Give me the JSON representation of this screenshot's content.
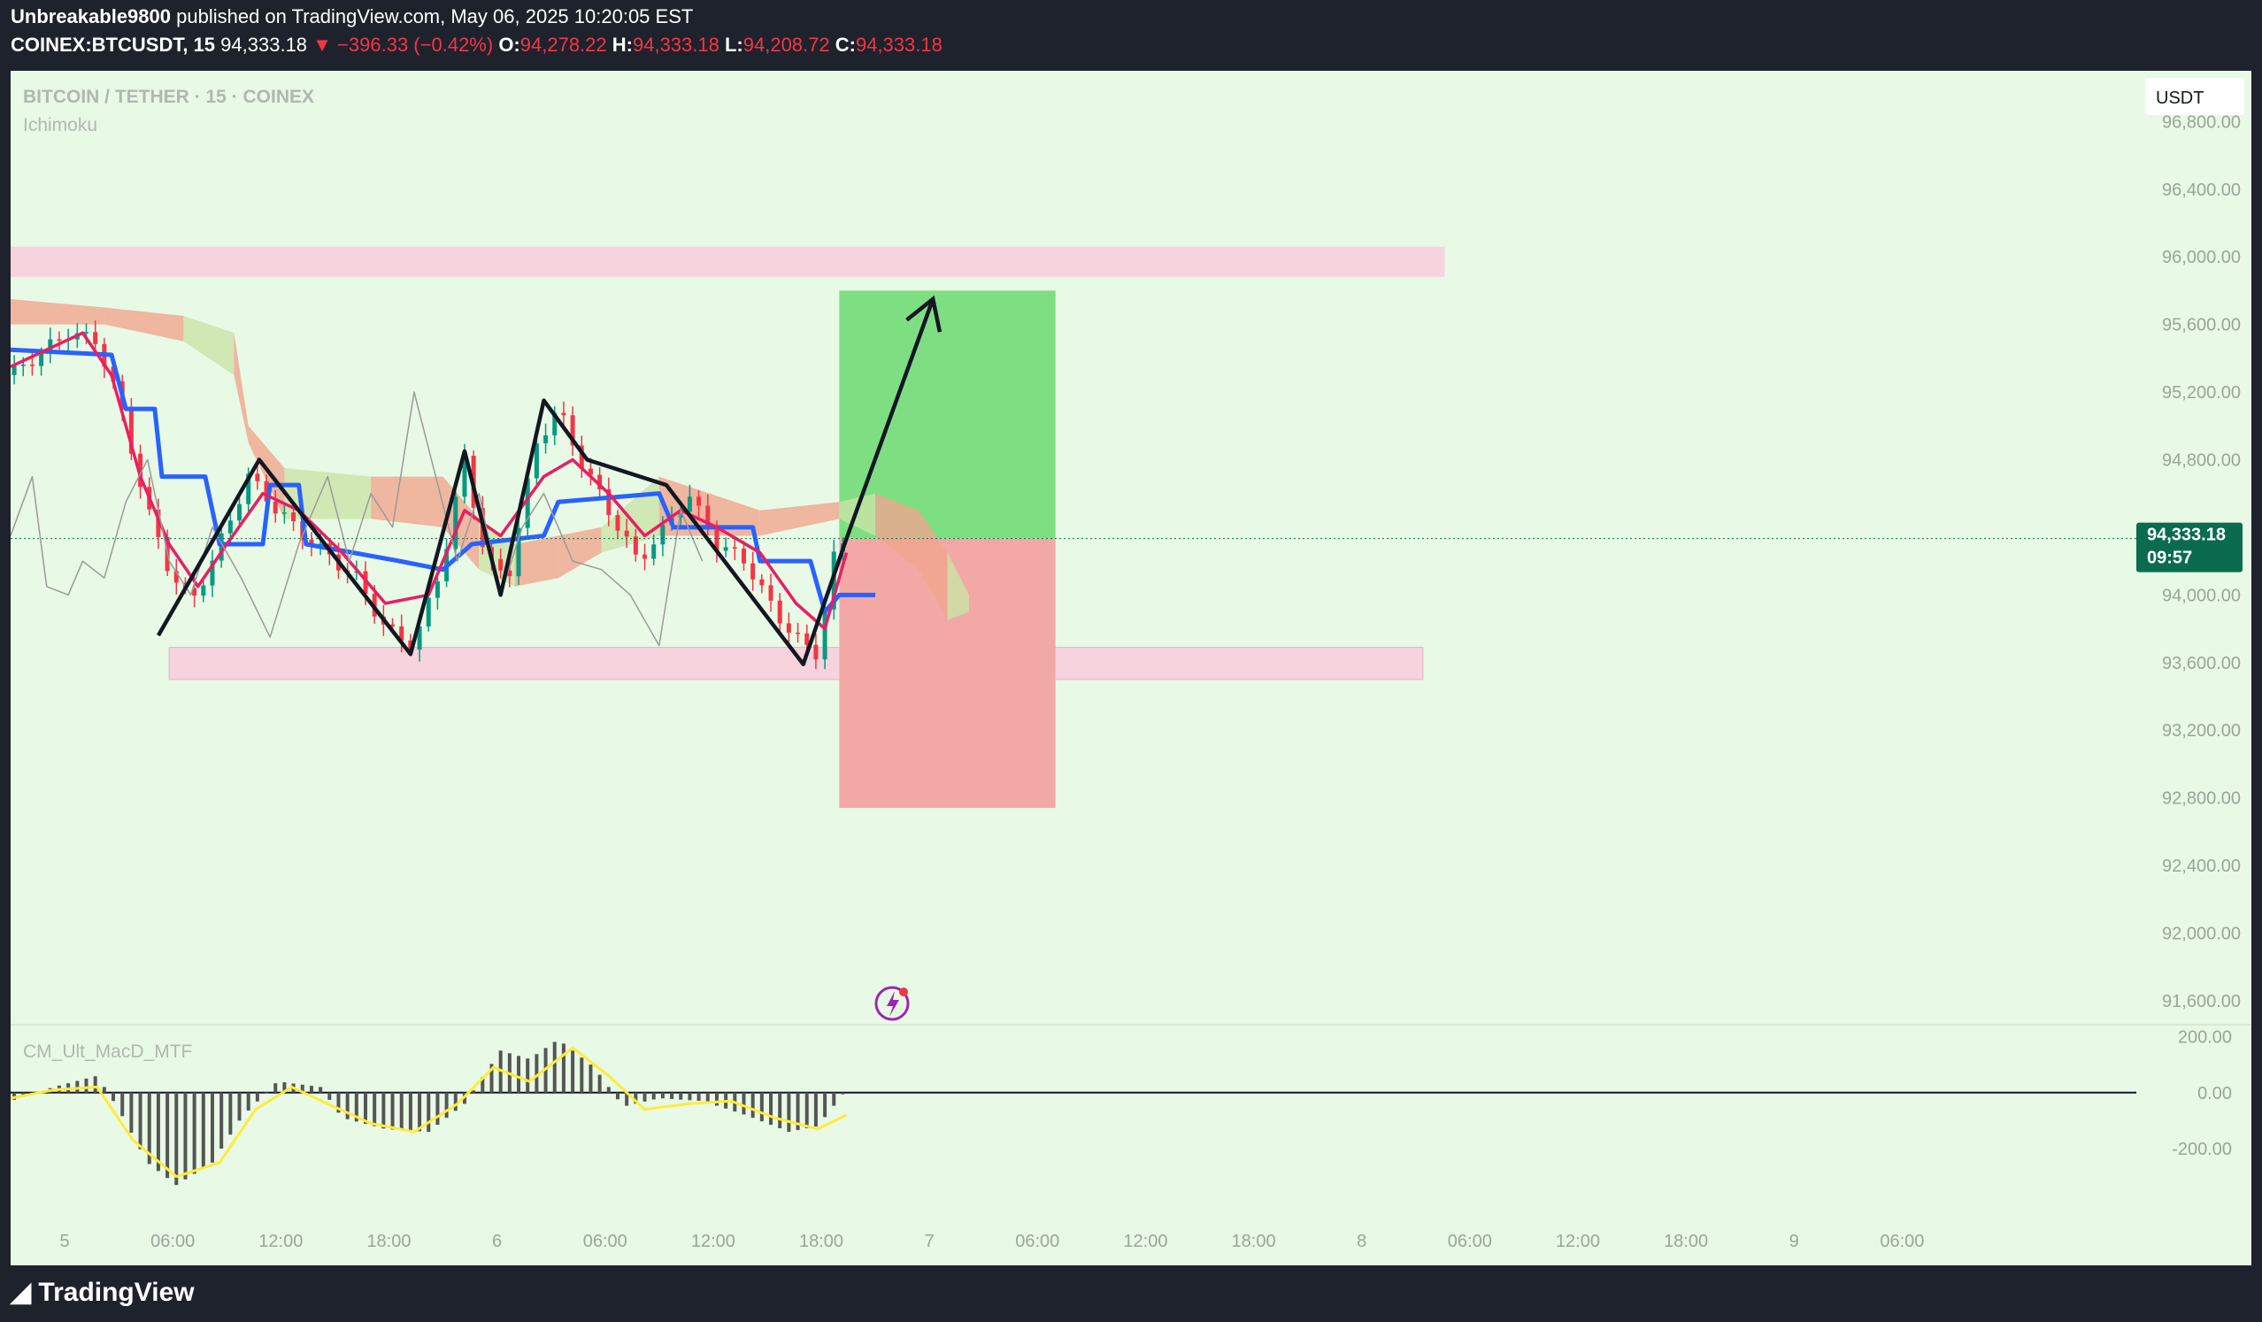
{
  "header": {
    "author": "Unbreakable9800",
    "published_text": "published on TradingView.com, May 06, 2025 10:20:05 EST",
    "symbol": "COINEX:BTCUSDT, 15",
    "last": "94,333.18",
    "change": "▼ −396.33 (−0.42%)",
    "o_label": "O:",
    "o": "94,278.22",
    "h_label": "H:",
    "h": "94,333.18",
    "l_label": "L:",
    "l": "94,208.72",
    "c_label": "C:",
    "c": "94,333.18"
  },
  "chart_meta": {
    "pair_title": "BITCOIN / TETHER · 15 · COINEX",
    "indicator": "Ichimoku",
    "currency": "USDT",
    "price_tag": "94,333.18",
    "countdown": "09:57",
    "macd_name": "CM_Ult_MacD_MTF"
  },
  "colors": {
    "bg": "#e8f9e5",
    "price_tag": "#0b6b4f",
    "tenkan": "#e91e63",
    "kijun": "#2962ff",
    "signal": "#ffeb3b",
    "target_zone": "#7ddf82",
    "stop_zone": "#f2a9a6",
    "level_zone": "#f7d3dd",
    "text_dim": "#b0b8b0"
  },
  "footer": {
    "brand": "TradingView"
  },
  "chart_data": [
    {
      "type": "candlestick",
      "title": "BITCOIN / TETHER · 15 · COINEX",
      "ylabel": "USDT",
      "ylim": [
        91500,
        97100
      ],
      "yticks": [
        96800,
        96400,
        96000,
        95600,
        95200,
        94800,
        94000,
        93600,
        93200,
        92800,
        92400,
        92000,
        91600
      ],
      "ytick_labels": [
        "96,800.00",
        "96,400.00",
        "96,000.00",
        "95,600.00",
        "95,200.00",
        "94,800.00",
        "94,000.00",
        "93,600.00",
        "93,200.00",
        "92,800.00",
        "92,400.00",
        "92,000.00",
        "91,600.00"
      ],
      "xlim": [
        0,
        29.5
      ],
      "xticks": [
        0.75,
        2.25,
        3.75,
        5.25,
        6.75,
        8.25,
        9.75,
        11.25,
        12.75,
        14.25,
        15.75,
        17.25,
        18.75,
        20.25,
        21.75,
        23.25,
        24.75,
        26.25
      ],
      "xtick_labels": [
        "5",
        "06:00",
        "12:00",
        "18:00",
        "6",
        "06:00",
        "12:00",
        "18:00",
        "7",
        "06:00",
        "12:00",
        "18:00",
        "8",
        "06:00",
        "12:00",
        "18:00",
        "9",
        "06:00"
      ],
      "x_note": "x unit = hours since 00:00 of May 5",
      "last_price": 94333.18,
      "close_path": [
        {
          "x": 0.0,
          "y": 95300
        },
        {
          "x": 0.8,
          "y": 95550
        },
        {
          "x": 1.2,
          "y": 95500
        },
        {
          "x": 1.5,
          "y": 95150
        },
        {
          "x": 1.9,
          "y": 94500
        },
        {
          "x": 2.2,
          "y": 94150
        },
        {
          "x": 2.5,
          "y": 93950
        },
        {
          "x": 2.8,
          "y": 94200
        },
        {
          "x": 3.3,
          "y": 94700
        },
        {
          "x": 3.7,
          "y": 94500
        },
        {
          "x": 4.2,
          "y": 94300
        },
        {
          "x": 4.8,
          "y": 94100
        },
        {
          "x": 5.2,
          "y": 93800
        },
        {
          "x": 5.6,
          "y": 93700
        },
        {
          "x": 6.0,
          "y": 94200
        },
        {
          "x": 6.3,
          "y": 94800
        },
        {
          "x": 6.6,
          "y": 94200
        },
        {
          "x": 6.9,
          "y": 94100
        },
        {
          "x": 7.3,
          "y": 94900
        },
        {
          "x": 7.6,
          "y": 95100
        },
        {
          "x": 7.9,
          "y": 94800
        },
        {
          "x": 8.3,
          "y": 94500
        },
        {
          "x": 8.7,
          "y": 94200
        },
        {
          "x": 9.1,
          "y": 94400
        },
        {
          "x": 9.4,
          "y": 94600
        },
        {
          "x": 9.8,
          "y": 94300
        },
        {
          "x": 10.2,
          "y": 94200
        },
        {
          "x": 10.6,
          "y": 93900
        },
        {
          "x": 11.0,
          "y": 93700
        },
        {
          "x": 11.2,
          "y": 93650
        },
        {
          "x": 11.4,
          "y": 94200
        },
        {
          "x": 11.6,
          "y": 94333
        }
      ],
      "series": [
        {
          "name": "Ichimoku",
          "values": [
            {
              "x": 0.0,
              "y": 95450
            },
            {
              "x": 1.4,
              "y": 95420
            },
            {
              "x": 1.6,
              "y": 95100
            },
            {
              "x": 2.0,
              "y": 95100
            },
            {
              "x": 2.1,
              "y": 94700
            },
            {
              "x": 2.7,
              "y": 94700
            },
            {
              "x": 2.9,
              "y": 94300
            },
            {
              "x": 3.5,
              "y": 94300
            },
            {
              "x": 3.6,
              "y": 94650
            },
            {
              "x": 4.0,
              "y": 94650
            },
            {
              "x": 4.1,
              "y": 94300
            },
            {
              "x": 5.4,
              "y": 94200
            },
            {
              "x": 6.0,
              "y": 94150
            },
            {
              "x": 6.4,
              "y": 94300
            },
            {
              "x": 7.4,
              "y": 94350
            },
            {
              "x": 7.6,
              "y": 94550
            },
            {
              "x": 9.0,
              "y": 94600
            },
            {
              "x": 9.2,
              "y": 94400
            },
            {
              "x": 10.3,
              "y": 94400
            },
            {
              "x": 10.4,
              "y": 94200
            },
            {
              "x": 11.1,
              "y": 94200
            },
            {
              "x": 11.3,
              "y": 93900
            },
            {
              "x": 11.5,
              "y": 94000
            },
            {
              "x": 12.0,
              "y": 94000
            }
          ]
        },
        {
          "name": "Tenkan",
          "values": [
            {
              "x": 0.0,
              "y": 95350
            },
            {
              "x": 1.0,
              "y": 95550
            },
            {
              "x": 1.4,
              "y": 95300
            },
            {
              "x": 1.8,
              "y": 94700
            },
            {
              "x": 2.2,
              "y": 94300
            },
            {
              "x": 2.6,
              "y": 94050
            },
            {
              "x": 3.0,
              "y": 94300
            },
            {
              "x": 3.5,
              "y": 94600
            },
            {
              "x": 4.0,
              "y": 94500
            },
            {
              "x": 4.6,
              "y": 94250
            },
            {
              "x": 5.2,
              "y": 93950
            },
            {
              "x": 5.8,
              "y": 94000
            },
            {
              "x": 6.3,
              "y": 94500
            },
            {
              "x": 6.8,
              "y": 94350
            },
            {
              "x": 7.4,
              "y": 94700
            },
            {
              "x": 7.8,
              "y": 94800
            },
            {
              "x": 8.3,
              "y": 94600
            },
            {
              "x": 8.8,
              "y": 94350
            },
            {
              "x": 9.3,
              "y": 94500
            },
            {
              "x": 9.8,
              "y": 94400
            },
            {
              "x": 10.4,
              "y": 94250
            },
            {
              "x": 10.9,
              "y": 93950
            },
            {
              "x": 11.3,
              "y": 93800
            },
            {
              "x": 11.6,
              "y": 94250
            }
          ]
        },
        {
          "name": "Lagging",
          "values": [
            {
              "x": 0.0,
              "y": 94350
            },
            {
              "x": 0.3,
              "y": 94700
            },
            {
              "x": 0.5,
              "y": 94050
            },
            {
              "x": 0.8,
              "y": 94000
            },
            {
              "x": 1.0,
              "y": 94200
            },
            {
              "x": 1.3,
              "y": 94100
            },
            {
              "x": 1.6,
              "y": 94550
            },
            {
              "x": 1.9,
              "y": 94800
            },
            {
              "x": 2.2,
              "y": 94200
            },
            {
              "x": 2.5,
              "y": 94000
            },
            {
              "x": 2.8,
              "y": 94400
            },
            {
              "x": 3.2,
              "y": 94100
            },
            {
              "x": 3.6,
              "y": 93750
            },
            {
              "x": 4.0,
              "y": 94300
            },
            {
              "x": 4.4,
              "y": 94700
            },
            {
              "x": 4.7,
              "y": 94200
            },
            {
              "x": 5.0,
              "y": 94600
            },
            {
              "x": 5.3,
              "y": 94400
            },
            {
              "x": 5.6,
              "y": 95200
            },
            {
              "x": 5.9,
              "y": 94700
            },
            {
              "x": 6.2,
              "y": 94200
            },
            {
              "x": 6.5,
              "y": 94600
            },
            {
              "x": 6.8,
              "y": 94000
            },
            {
              "x": 7.1,
              "y": 94400
            },
            {
              "x": 7.4,
              "y": 94600
            },
            {
              "x": 7.8,
              "y": 94200
            },
            {
              "x": 8.2,
              "y": 94150
            },
            {
              "x": 8.6,
              "y": 94000
            },
            {
              "x": 9.0,
              "y": 93700
            },
            {
              "x": 9.3,
              "y": 94500
            },
            {
              "x": 9.6,
              "y": 94200
            }
          ]
        }
      ],
      "cloud": [
        {
          "x": 0.0,
          "top": 95750,
          "bottom": 95600
        },
        {
          "x": 1.3,
          "top": 95700,
          "bottom": 95600
        },
        {
          "x": 2.4,
          "top": 95650,
          "bottom": 95500
        },
        {
          "x": 3.1,
          "top": 95550,
          "bottom": 95300
        },
        {
          "x": 3.3,
          "top": 95000,
          "bottom": 94900
        },
        {
          "x": 3.8,
          "top": 94750,
          "bottom": 94450
        },
        {
          "x": 5.0,
          "top": 94700,
          "bottom": 94450
        },
        {
          "x": 6.0,
          "top": 94700,
          "bottom": 94400
        },
        {
          "x": 6.5,
          "top": 94450,
          "bottom": 94150
        },
        {
          "x": 7.0,
          "top": 94300,
          "bottom": 94050
        },
        {
          "x": 7.6,
          "top": 94350,
          "bottom": 94100
        },
        {
          "x": 8.2,
          "top": 94400,
          "bottom": 94250
        },
        {
          "x": 9.0,
          "top": 94700,
          "bottom": 94350
        },
        {
          "x": 10.4,
          "top": 94500,
          "bottom": 94350
        },
        {
          "x": 11.5,
          "top": 94550,
          "bottom": 94450
        },
        {
          "x": 12.0,
          "top": 94600,
          "bottom": 94350
        },
        {
          "x": 12.6,
          "top": 94500,
          "bottom": 94150
        },
        {
          "x": 13.0,
          "top": 94250,
          "bottom": 93850
        },
        {
          "x": 13.3,
          "top": 94000,
          "bottom": 93900
        }
      ],
      "zones": [
        {
          "name": "resistance",
          "x0": 0.0,
          "x1": 19.9,
          "y0": 95880,
          "y1": 96060
        },
        {
          "name": "support",
          "x0": 2.2,
          "x1": 19.6,
          "y0": 93500,
          "y1": 93690
        },
        {
          "name": "target",
          "x0": 11.5,
          "x1": 14.5,
          "y0": 94333,
          "y1": 95800
        },
        {
          "name": "stop",
          "x0": 11.5,
          "x1": 14.5,
          "y0": 92740,
          "y1": 94333
        }
      ],
      "pattern": [
        {
          "x": 2.05,
          "y": 93760
        },
        {
          "x": 3.45,
          "y": 94800
        },
        {
          "x": 5.55,
          "y": 93650
        },
        {
          "x": 6.3,
          "y": 94850
        },
        {
          "x": 6.8,
          "y": 94000
        },
        {
          "x": 7.4,
          "y": 95150
        },
        {
          "x": 8.0,
          "y": 94800
        },
        {
          "x": 9.1,
          "y": 94650
        },
        {
          "x": 11.0,
          "y": 93590
        },
        {
          "x": 11.6,
          "y": 94333
        },
        {
          "x": 12.8,
          "y": 95750
        }
      ]
    },
    {
      "type": "bar",
      "title": "CM_Ult_MacD_MTF",
      "ylim": [
        -320,
        230
      ],
      "yticks": [
        200,
        0,
        -200
      ],
      "ytick_labels": [
        "200.00",
        "0.00",
        "-200.00"
      ],
      "series": [
        {
          "name": "MACD",
          "values": [
            {
              "x": 0.0,
              "y": -30
            },
            {
              "x": 0.6,
              "y": 20
            },
            {
              "x": 1.2,
              "y": 60
            },
            {
              "x": 1.5,
              "y": -60
            },
            {
              "x": 1.9,
              "y": -250
            },
            {
              "x": 2.3,
              "y": -330
            },
            {
              "x": 2.8,
              "y": -250
            },
            {
              "x": 3.2,
              "y": -90
            },
            {
              "x": 3.7,
              "y": 40
            },
            {
              "x": 4.3,
              "y": 20
            },
            {
              "x": 4.6,
              "y": -90
            },
            {
              "x": 5.2,
              "y": -130
            },
            {
              "x": 5.8,
              "y": -140
            },
            {
              "x": 6.3,
              "y": -40
            },
            {
              "x": 6.8,
              "y": 150
            },
            {
              "x": 7.2,
              "y": 120
            },
            {
              "x": 7.6,
              "y": 190
            },
            {
              "x": 8.1,
              "y": 90
            },
            {
              "x": 8.5,
              "y": -50
            },
            {
              "x": 9.0,
              "y": -20
            },
            {
              "x": 9.6,
              "y": -30
            },
            {
              "x": 10.2,
              "y": -80
            },
            {
              "x": 10.8,
              "y": -140
            },
            {
              "x": 11.2,
              "y": -120
            },
            {
              "x": 11.6,
              "y": 10
            }
          ]
        },
        {
          "name": "Signal",
          "values": [
            {
              "x": 0.0,
              "y": -20
            },
            {
              "x": 0.6,
              "y": 10
            },
            {
              "x": 1.2,
              "y": 20
            },
            {
              "x": 1.7,
              "y": -170
            },
            {
              "x": 2.3,
              "y": -300
            },
            {
              "x": 2.9,
              "y": -250
            },
            {
              "x": 3.4,
              "y": -60
            },
            {
              "x": 3.9,
              "y": 20
            },
            {
              "x": 4.4,
              "y": -40
            },
            {
              "x": 5.0,
              "y": -110
            },
            {
              "x": 5.6,
              "y": -140
            },
            {
              "x": 6.2,
              "y": -40
            },
            {
              "x": 6.7,
              "y": 90
            },
            {
              "x": 7.2,
              "y": 40
            },
            {
              "x": 7.8,
              "y": 160
            },
            {
              "x": 8.3,
              "y": 60
            },
            {
              "x": 8.8,
              "y": -60
            },
            {
              "x": 9.4,
              "y": -40
            },
            {
              "x": 10.0,
              "y": -30
            },
            {
              "x": 10.6,
              "y": -90
            },
            {
              "x": 11.2,
              "y": -130
            },
            {
              "x": 11.6,
              "y": -80
            }
          ]
        }
      ]
    }
  ]
}
